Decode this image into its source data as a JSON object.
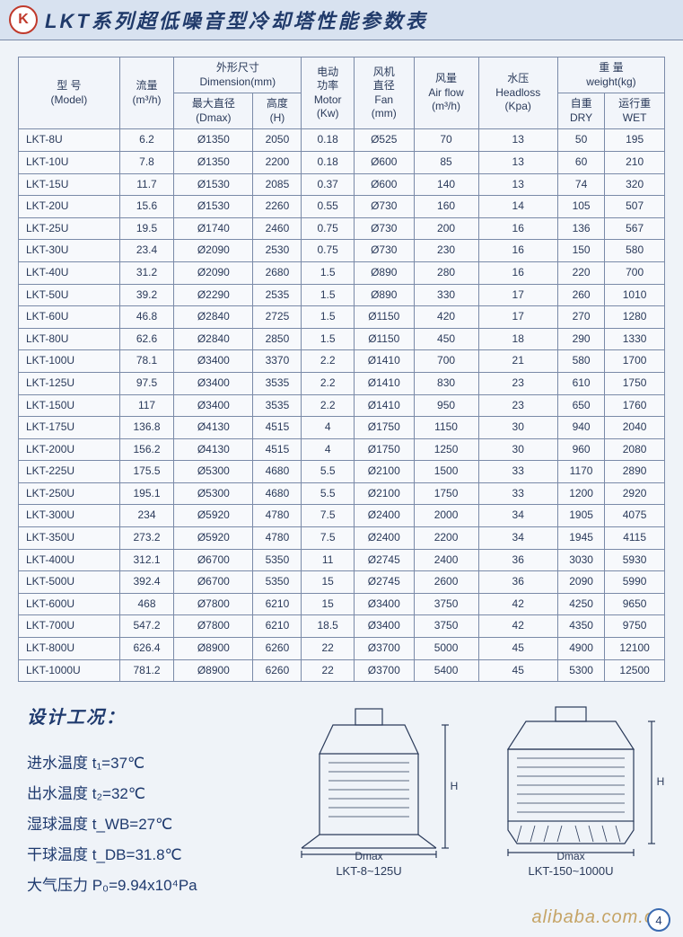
{
  "title": "LKT系列超低噪音型冷却塔性能参数表",
  "logo_letter": "K",
  "headers": {
    "model": "型 号\n(Model)",
    "flow": "流量\n(m³/h)",
    "dimension_group": "外形尺寸\nDimension(mm)",
    "dmax": "最大直径\n(Dmax)",
    "height": "高度\n(H)",
    "motor": "电动\n功率\nMotor\n(Kw)",
    "fan": "风机\n直径\nFan\n(mm)",
    "airflow": "风量\nAir flow\n(m³/h)",
    "headloss": "水压\nHeadloss\n(Kpa)",
    "weight_group": "重 量\nweight(kg)",
    "dry": "自重\nDRY",
    "wet": "运行重\nWET"
  },
  "rows": [
    {
      "model": "LKT-8U",
      "flow": "6.2",
      "dmax": "Ø1350",
      "h": "2050",
      "motor": "0.18",
      "fan": "Ø525",
      "air": "70",
      "head": "13",
      "dry": "50",
      "wet": "195"
    },
    {
      "model": "LKT-10U",
      "flow": "7.8",
      "dmax": "Ø1350",
      "h": "2200",
      "motor": "0.18",
      "fan": "Ø600",
      "air": "85",
      "head": "13",
      "dry": "60",
      "wet": "210"
    },
    {
      "model": "LKT-15U",
      "flow": "11.7",
      "dmax": "Ø1530",
      "h": "2085",
      "motor": "0.37",
      "fan": "Ø600",
      "air": "140",
      "head": "13",
      "dry": "74",
      "wet": "320"
    },
    {
      "model": "LKT-20U",
      "flow": "15.6",
      "dmax": "Ø1530",
      "h": "2260",
      "motor": "0.55",
      "fan": "Ø730",
      "air": "160",
      "head": "14",
      "dry": "105",
      "wet": "507"
    },
    {
      "model": "LKT-25U",
      "flow": "19.5",
      "dmax": "Ø1740",
      "h": "2460",
      "motor": "0.75",
      "fan": "Ø730",
      "air": "200",
      "head": "16",
      "dry": "136",
      "wet": "567"
    },
    {
      "model": "LKT-30U",
      "flow": "23.4",
      "dmax": "Ø2090",
      "h": "2530",
      "motor": "0.75",
      "fan": "Ø730",
      "air": "230",
      "head": "16",
      "dry": "150",
      "wet": "580"
    },
    {
      "model": "LKT-40U",
      "flow": "31.2",
      "dmax": "Ø2090",
      "h": "2680",
      "motor": "1.5",
      "fan": "Ø890",
      "air": "280",
      "head": "16",
      "dry": "220",
      "wet": "700"
    },
    {
      "model": "LKT-50U",
      "flow": "39.2",
      "dmax": "Ø2290",
      "h": "2535",
      "motor": "1.5",
      "fan": "Ø890",
      "air": "330",
      "head": "17",
      "dry": "260",
      "wet": "1010"
    },
    {
      "model": "LKT-60U",
      "flow": "46.8",
      "dmax": "Ø2840",
      "h": "2725",
      "motor": "1.5",
      "fan": "Ø1150",
      "air": "420",
      "head": "17",
      "dry": "270",
      "wet": "1280"
    },
    {
      "model": "LKT-80U",
      "flow": "62.6",
      "dmax": "Ø2840",
      "h": "2850",
      "motor": "1.5",
      "fan": "Ø1150",
      "air": "450",
      "head": "18",
      "dry": "290",
      "wet": "1330"
    },
    {
      "model": "LKT-100U",
      "flow": "78.1",
      "dmax": "Ø3400",
      "h": "3370",
      "motor": "2.2",
      "fan": "Ø1410",
      "air": "700",
      "head": "21",
      "dry": "580",
      "wet": "1700"
    },
    {
      "model": "LKT-125U",
      "flow": "97.5",
      "dmax": "Ø3400",
      "h": "3535",
      "motor": "2.2",
      "fan": "Ø1410",
      "air": "830",
      "head": "23",
      "dry": "610",
      "wet": "1750"
    },
    {
      "model": "LKT-150U",
      "flow": "117",
      "dmax": "Ø3400",
      "h": "3535",
      "motor": "2.2",
      "fan": "Ø1410",
      "air": "950",
      "head": "23",
      "dry": "650",
      "wet": "1760"
    },
    {
      "model": "LKT-175U",
      "flow": "136.8",
      "dmax": "Ø4130",
      "h": "4515",
      "motor": "4",
      "fan": "Ø1750",
      "air": "1150",
      "head": "30",
      "dry": "940",
      "wet": "2040"
    },
    {
      "model": "LKT-200U",
      "flow": "156.2",
      "dmax": "Ø4130",
      "h": "4515",
      "motor": "4",
      "fan": "Ø1750",
      "air": "1250",
      "head": "30",
      "dry": "960",
      "wet": "2080"
    },
    {
      "model": "LKT-225U",
      "flow": "175.5",
      "dmax": "Ø5300",
      "h": "4680",
      "motor": "5.5",
      "fan": "Ø2100",
      "air": "1500",
      "head": "33",
      "dry": "1170",
      "wet": "2890"
    },
    {
      "model": "LKT-250U",
      "flow": "195.1",
      "dmax": "Ø5300",
      "h": "4680",
      "motor": "5.5",
      "fan": "Ø2100",
      "air": "1750",
      "head": "33",
      "dry": "1200",
      "wet": "2920"
    },
    {
      "model": "LKT-300U",
      "flow": "234",
      "dmax": "Ø5920",
      "h": "4780",
      "motor": "7.5",
      "fan": "Ø2400",
      "air": "2000",
      "head": "34",
      "dry": "1905",
      "wet": "4075"
    },
    {
      "model": "LKT-350U",
      "flow": "273.2",
      "dmax": "Ø5920",
      "h": "4780",
      "motor": "7.5",
      "fan": "Ø2400",
      "air": "2200",
      "head": "34",
      "dry": "1945",
      "wet": "4115"
    },
    {
      "model": "LKT-400U",
      "flow": "312.1",
      "dmax": "Ø6700",
      "h": "5350",
      "motor": "11",
      "fan": "Ø2745",
      "air": "2400",
      "head": "36",
      "dry": "3030",
      "wet": "5930"
    },
    {
      "model": "LKT-500U",
      "flow": "392.4",
      "dmax": "Ø6700",
      "h": "5350",
      "motor": "15",
      "fan": "Ø2745",
      "air": "2600",
      "head": "36",
      "dry": "2090",
      "wet": "5990"
    },
    {
      "model": "LKT-600U",
      "flow": "468",
      "dmax": "Ø7800",
      "h": "6210",
      "motor": "15",
      "fan": "Ø3400",
      "air": "3750",
      "head": "42",
      "dry": "4250",
      "wet": "9650"
    },
    {
      "model": "LKT-700U",
      "flow": "547.2",
      "dmax": "Ø7800",
      "h": "6210",
      "motor": "18.5",
      "fan": "Ø3400",
      "air": "3750",
      "head": "42",
      "dry": "4350",
      "wet": "9750"
    },
    {
      "model": "LKT-800U",
      "flow": "626.4",
      "dmax": "Ø8900",
      "h": "6260",
      "motor": "22",
      "fan": "Ø3700",
      "air": "5000",
      "head": "45",
      "dry": "4900",
      "wet": "12100"
    },
    {
      "model": "LKT-1000U",
      "flow": "781.2",
      "dmax": "Ø8900",
      "h": "6260",
      "motor": "22",
      "fan": "Ø3700",
      "air": "5400",
      "head": "45",
      "dry": "5300",
      "wet": "12500"
    }
  ],
  "design": {
    "title": "设计工况：",
    "lines": [
      "进水温度 t₁=37℃",
      "出水温度 t₂=32℃",
      "湿球温度 t_WB=27℃",
      "干球温度 t_DB=31.8℃",
      "大气压力 P₀=9.94x10⁴Pa"
    ]
  },
  "diagrams": {
    "left_caption": "LKT-8~125U",
    "right_caption": "LKT-150~1000U",
    "dmax_label": "Dmax",
    "h_label": "H"
  },
  "watermark": "alibaba.com.cn",
  "page_number": "4",
  "colors": {
    "border": "#7a8aa8",
    "bg": "#eff3f8",
    "text": "#2a3a5a",
    "accent": "#1f3a6e"
  }
}
